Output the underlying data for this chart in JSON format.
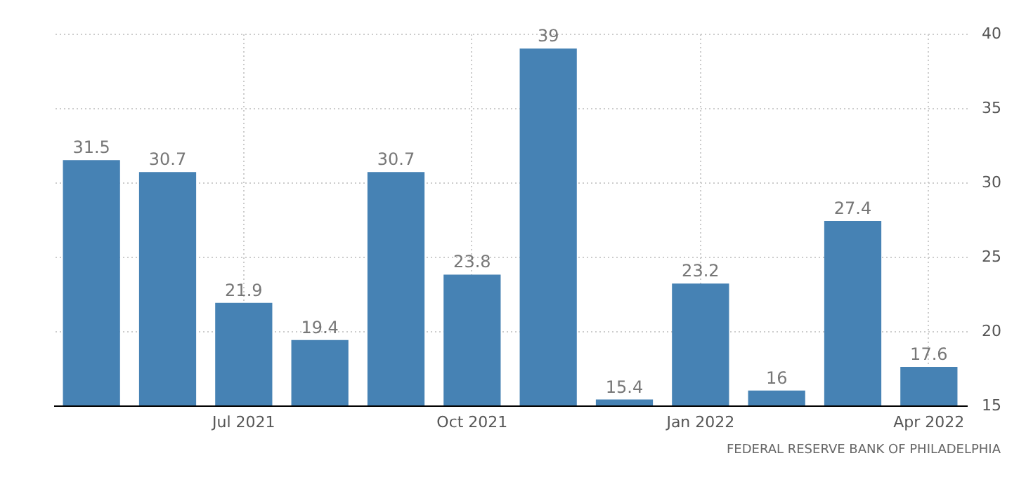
{
  "chart_data": {
    "type": "bar",
    "categories": [
      null,
      null,
      "Jul 2021",
      null,
      null,
      "Oct 2021",
      null,
      null,
      "Jan 2022",
      null,
      null,
      "Apr 2022"
    ],
    "values": [
      31.5,
      30.7,
      21.9,
      19.4,
      30.7,
      23.8,
      39,
      15.4,
      23.2,
      16,
      27.4,
      17.6
    ],
    "color": "#4682b4",
    "ylim": [
      15,
      40
    ],
    "yticks": [
      15,
      20,
      25,
      30,
      35,
      40
    ],
    "grid": true,
    "data_labels": true,
    "annotations": [
      "FEDERAL RESERVE BANK OF PHILADELPHIA"
    ]
  }
}
